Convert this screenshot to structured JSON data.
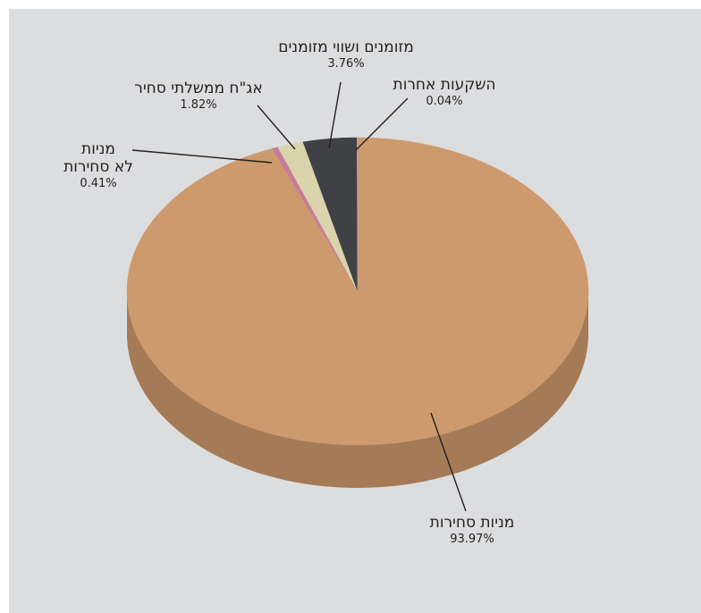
{
  "chart_data": {
    "type": "pie",
    "title": "",
    "slices": [
      {
        "label": "מניות סחירות",
        "label_lines": [
          "מניות סחירות"
        ],
        "value": 93.97,
        "value_text": "93.97%",
        "color": "#cd9a6d",
        "side_color": "#a57a56"
      },
      {
        "label": "מניות לא סחירות",
        "label_lines": [
          "מניות",
          "לא סחירות"
        ],
        "value": 0.41,
        "value_text": "0.41%",
        "color": "#c97b9a",
        "side_color": "#9e5f78"
      },
      {
        "label": "אג\"ח ממשלתי סחיר",
        "label_lines": [
          "אג\"ח ממשלתי סחיר"
        ],
        "value": 1.82,
        "value_text": "1.82%",
        "color": "#d9d4ab",
        "side_color": "#b0ab86"
      },
      {
        "label": "מזומנים ושווי מזומנים",
        "label_lines": [
          "מזומנים ושווי מזומנים"
        ],
        "value": 3.76,
        "value_text": "3.76%",
        "color": "#404144",
        "side_color": "#2c2d2f"
      },
      {
        "label": "השקעות אחרות",
        "label_lines": [
          "השקעות אחרות"
        ],
        "value": 0.04,
        "value_text": "0.04%",
        "color": "#b3b4b6",
        "side_color": "#8d8e90"
      }
    ],
    "legend": "none",
    "style": "3d-pie-with-leader-lines"
  }
}
